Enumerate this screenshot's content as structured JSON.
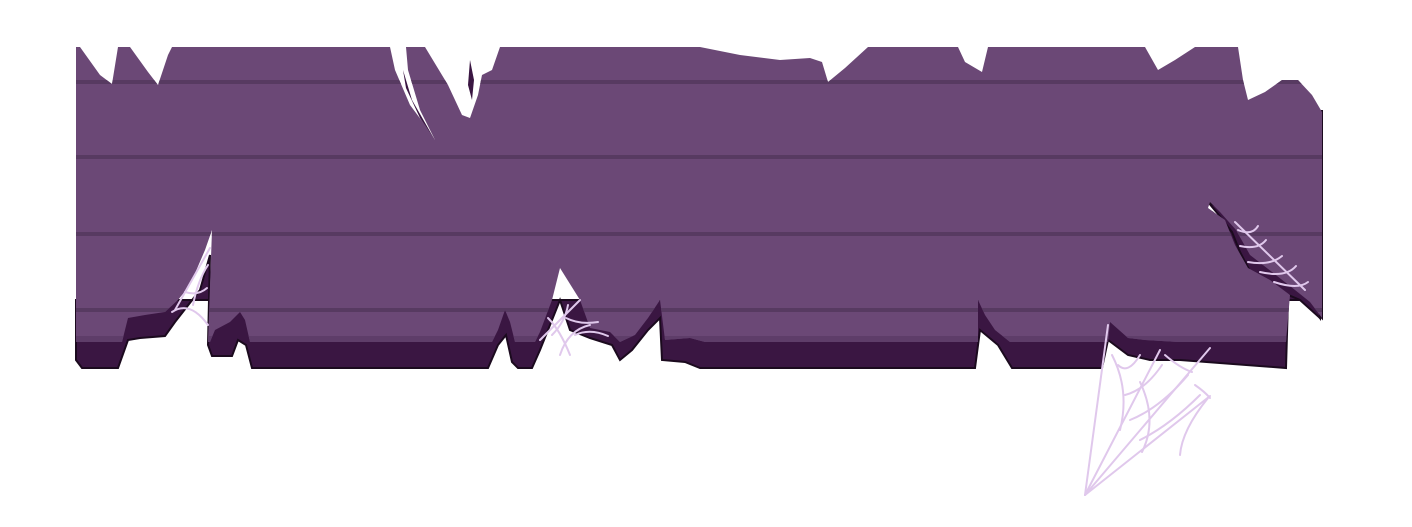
{
  "banner": {
    "plank_color": "#6b4876",
    "plank_line_color": "#573a61",
    "shadow_color": "#3a1642",
    "outline_color": "#1b0a1e",
    "background_color": "#ffffff",
    "cobweb_color": "#e0c8ec",
    "cobweb_dark_color": "#c9a9d8",
    "icons": [
      "torn-wooden-plank-banner",
      "cobweb-icon"
    ],
    "cobweb_count": 4
  }
}
